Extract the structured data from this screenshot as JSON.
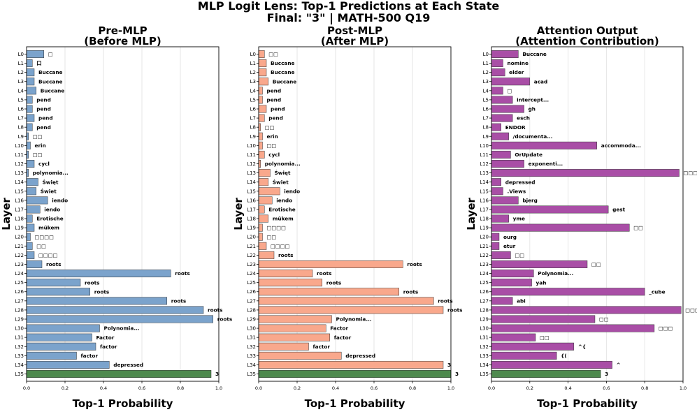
{
  "figure": {
    "suptitle_line1": "MLP Logit Lens: Top-1 Predictions at Each State",
    "suptitle_line2": "Final: \"3\" | MATH-500 Q19",
    "colors": {
      "final_bar": "#4e8a4e"
    }
  },
  "chart_data": [
    {
      "type": "bar",
      "orientation": "horizontal",
      "title_line1": "Pre-MLP",
      "title_line2": "(Before MLP)",
      "xlabel": "Top-1 Probability",
      "ylabel": "Layer",
      "xlim": [
        0,
        1.0
      ],
      "xticks": [
        "0.0",
        "0.2",
        "0.4",
        "0.6",
        "0.8",
        "1.0"
      ],
      "bar_color": "#7ba3cc",
      "categories": [
        "L0",
        "L1",
        "L2",
        "L3",
        "L4",
        "L5",
        "L6",
        "L7",
        "L8",
        "L9",
        "L10",
        "L11",
        "L12",
        "L13",
        "L14",
        "L15",
        "L16",
        "L17",
        "L18",
        "L19",
        "L20",
        "L21",
        "L22",
        "L23",
        "L24",
        "L25",
        "L26",
        "L27",
        "L28",
        "L29",
        "L30",
        "L31",
        "L32",
        "L33",
        "L34",
        "L35"
      ],
      "values": [
        0.09,
        0.03,
        0.04,
        0.04,
        0.05,
        0.03,
        0.03,
        0.04,
        0.03,
        0.01,
        0.02,
        0.01,
        0.04,
        0.01,
        0.06,
        0.05,
        0.11,
        0.07,
        0.03,
        0.04,
        0.02,
        0.03,
        0.04,
        0.08,
        0.75,
        0.28,
        0.33,
        0.73,
        0.92,
        0.97,
        0.38,
        0.34,
        0.36,
        0.26,
        0.43,
        0.96
      ],
      "labels": [
        "□",
        "口",
        "Buccane",
        "Buccane",
        "Buccane",
        "pend",
        "pend",
        "pend",
        "pend",
        "□□",
        "erin",
        "□□",
        "cycl",
        "polynomia...",
        "Święt",
        "Świet",
        "iendo",
        "iendo",
        "Erotische",
        "mükem",
        "□□□□",
        "□□",
        "□□□□",
        "roots",
        "roots",
        "roots",
        "roots",
        "roots",
        "roots",
        "roots",
        "Polynomia...",
        "Factor",
        "factor",
        "factor",
        "depressed",
        "3"
      ]
    },
    {
      "type": "bar",
      "orientation": "horizontal",
      "title_line1": "Post-MLP",
      "title_line2": "(After MLP)",
      "xlabel": "Top-1 Probability",
      "ylabel": "Layer",
      "xlim": [
        0,
        1.0
      ],
      "xticks": [
        "0.0",
        "0.2",
        "0.4",
        "0.6",
        "0.8",
        "1.0"
      ],
      "bar_color": "#f9a88c",
      "categories": [
        "L0",
        "L1",
        "L2",
        "L3",
        "L4",
        "L5",
        "L6",
        "L7",
        "L8",
        "L9",
        "L10",
        "L11",
        "L12",
        "L13",
        "L14",
        "L15",
        "L16",
        "L17",
        "L18",
        "L19",
        "L20",
        "L21",
        "L22",
        "L23",
        "L24",
        "L25",
        "L26",
        "L27",
        "L28",
        "L29",
        "L30",
        "L31",
        "L32",
        "L33",
        "L34",
        "L35"
      ],
      "values": [
        0.03,
        0.04,
        0.04,
        0.05,
        0.02,
        0.02,
        0.04,
        0.03,
        0.01,
        0.02,
        0.02,
        0.03,
        0.01,
        0.06,
        0.05,
        0.11,
        0.07,
        0.03,
        0.05,
        0.02,
        0.02,
        0.04,
        0.08,
        0.75,
        0.28,
        0.33,
        0.73,
        0.91,
        0.96,
        0.38,
        0.35,
        0.37,
        0.26,
        0.43,
        0.96,
        1.0
      ],
      "labels": [
        "□□",
        "Buccane",
        "Buccane",
        "Buccane",
        "pend",
        "pend",
        "pend",
        "pend",
        "□□",
        "erin",
        "□□",
        "cycl",
        "polynomia...",
        "Święt",
        "Świet",
        "iendo",
        "iendo",
        "Erotische",
        "mükem",
        "□□□□",
        "□□",
        "□□□□",
        "roots",
        "roots",
        "roots",
        "roots",
        "roots",
        "roots",
        "roots",
        "Polynomia...",
        "Factor",
        "factor",
        "factor",
        "depressed",
        "3",
        "3"
      ]
    },
    {
      "type": "bar",
      "orientation": "horizontal",
      "title_line1": "Attention Output",
      "title_line2": "(Attention Contribution)",
      "xlabel": "Top-1 Probability",
      "ylabel": "Layer",
      "xlim": [
        0,
        1.0
      ],
      "xticks": [
        "0.0",
        "0.2",
        "0.4",
        "0.6",
        "0.8",
        "1.0"
      ],
      "bar_color": "#a94ea6",
      "categories": [
        "L0",
        "L1",
        "L2",
        "L3",
        "L4",
        "L5",
        "L6",
        "L7",
        "L8",
        "L9",
        "L10",
        "L11",
        "L12",
        "L13",
        "L14",
        "L15",
        "L16",
        "L17",
        "L18",
        "L19",
        "L20",
        "L21",
        "L22",
        "L23",
        "L24",
        "L25",
        "L26",
        "L27",
        "L28",
        "L29",
        "L30",
        "L31",
        "L32",
        "L33",
        "L34",
        "L35"
      ],
      "values": [
        0.14,
        0.06,
        0.07,
        0.2,
        0.06,
        0.11,
        0.17,
        0.11,
        0.05,
        0.09,
        0.55,
        0.1,
        0.17,
        0.98,
        0.05,
        0.06,
        0.14,
        0.61,
        0.09,
        0.72,
        0.04,
        0.04,
        0.1,
        0.5,
        0.22,
        0.21,
        0.8,
        0.11,
        0.99,
        0.54,
        0.85,
        0.23,
        0.43,
        0.34,
        0.63,
        0.57
      ],
      "labels": [
        "Buccane",
        "nomine",
        "elder",
        "acad",
        "□",
        "intercept...",
        "gh",
        "esch",
        "ENDOR",
        "/documenta...",
        "accommoda...",
        "OrUpdate",
        "exponenti...",
        "□□□",
        "depressed",
        ".Views",
        "bjerg",
        "gest",
        "yme",
        "□□",
        "ourg",
        "etur",
        "□□",
        "□□",
        "Polynomia...",
        "yah",
        "_cube",
        "abi",
        "□□□",
        "□□",
        "□□□",
        "□□",
        "^{",
        "{(",
        "^",
        "3"
      ]
    }
  ]
}
